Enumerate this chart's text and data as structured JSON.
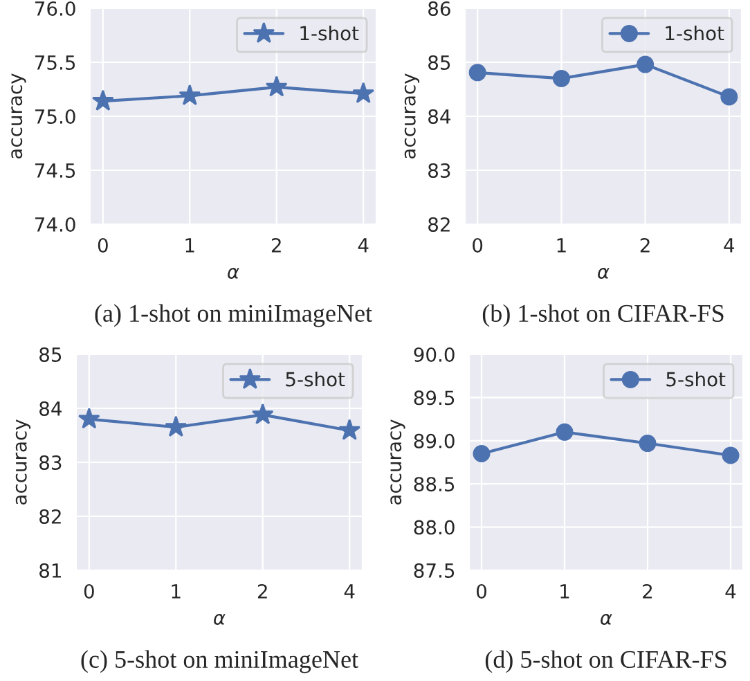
{
  "chart_data": [
    {
      "type": "line",
      "categories": [
        "0",
        "1",
        "2",
        "4"
      ],
      "xlabel": "α",
      "ylabel": "accuracy",
      "series": [
        {
          "name": "1-shot",
          "color": "#4c72b0",
          "values": [
            75.14,
            75.19,
            75.27,
            75.21
          ]
        }
      ],
      "ylim": [
        74.0,
        76.0
      ],
      "yticks": [
        {
          "value": 74.0,
          "label": "74.0"
        },
        {
          "value": 74.5,
          "label": "74.5"
        },
        {
          "value": 75.0,
          "label": "75.0"
        },
        {
          "value": 75.5,
          "label": "75.5"
        },
        {
          "value": 76.0,
          "label": "76.0"
        }
      ],
      "marker": "star",
      "grid": true,
      "legend": "top right",
      "annotations": [
        "(a) 1-shot on miniImageNet"
      ]
    },
    {
      "type": "line",
      "categories": [
        "0",
        "1",
        "2",
        "4"
      ],
      "xlabel": "α",
      "ylabel": "accuracy",
      "series": [
        {
          "name": "1-shot",
          "color": "#4c72b0",
          "values": [
            84.81,
            84.7,
            84.96,
            84.36
          ]
        }
      ],
      "ylim": [
        82,
        86
      ],
      "yticks": [
        82,
        83,
        84,
        85,
        86
      ],
      "marker": "circle",
      "grid": true,
      "legend": "top right",
      "annotations": [
        "(b) 1-shot on CIFAR-FS"
      ]
    },
    {
      "type": "line",
      "categories": [
        "0",
        "1",
        "2",
        "4"
      ],
      "xlabel": "α",
      "ylabel": "accuracy",
      "series": [
        {
          "name": "5-shot",
          "color": "#4c72b0",
          "values": [
            83.8,
            83.65,
            83.88,
            83.59
          ]
        }
      ],
      "ylim": [
        81,
        85
      ],
      "yticks": [
        81,
        82,
        83,
        84,
        85
      ],
      "marker": "star",
      "grid": true,
      "legend": "top right",
      "annotations": [
        "(c) 5-shot on miniImageNet"
      ]
    },
    {
      "type": "line",
      "categories": [
        "0",
        "1",
        "2",
        "4"
      ],
      "xlabel": "α",
      "ylabel": "accuracy",
      "series": [
        {
          "name": "5-shot",
          "color": "#4c72b0",
          "values": [
            88.85,
            89.1,
            88.97,
            88.83
          ]
        }
      ],
      "ylim": [
        87.5,
        90.0
      ],
      "yticks": [
        {
          "value": 87.5,
          "label": "87.5"
        },
        {
          "value": 88.0,
          "label": "88.0"
        },
        {
          "value": 88.5,
          "label": "88.5"
        },
        {
          "value": 89.0,
          "label": "89.0"
        },
        {
          "value": 89.5,
          "label": "89.5"
        },
        {
          "value": 90.0,
          "label": "90.0"
        }
      ],
      "marker": "circle",
      "grid": true,
      "legend": "top right",
      "annotations": [
        "(d) 5-shot on CIFAR-FS"
      ]
    }
  ]
}
